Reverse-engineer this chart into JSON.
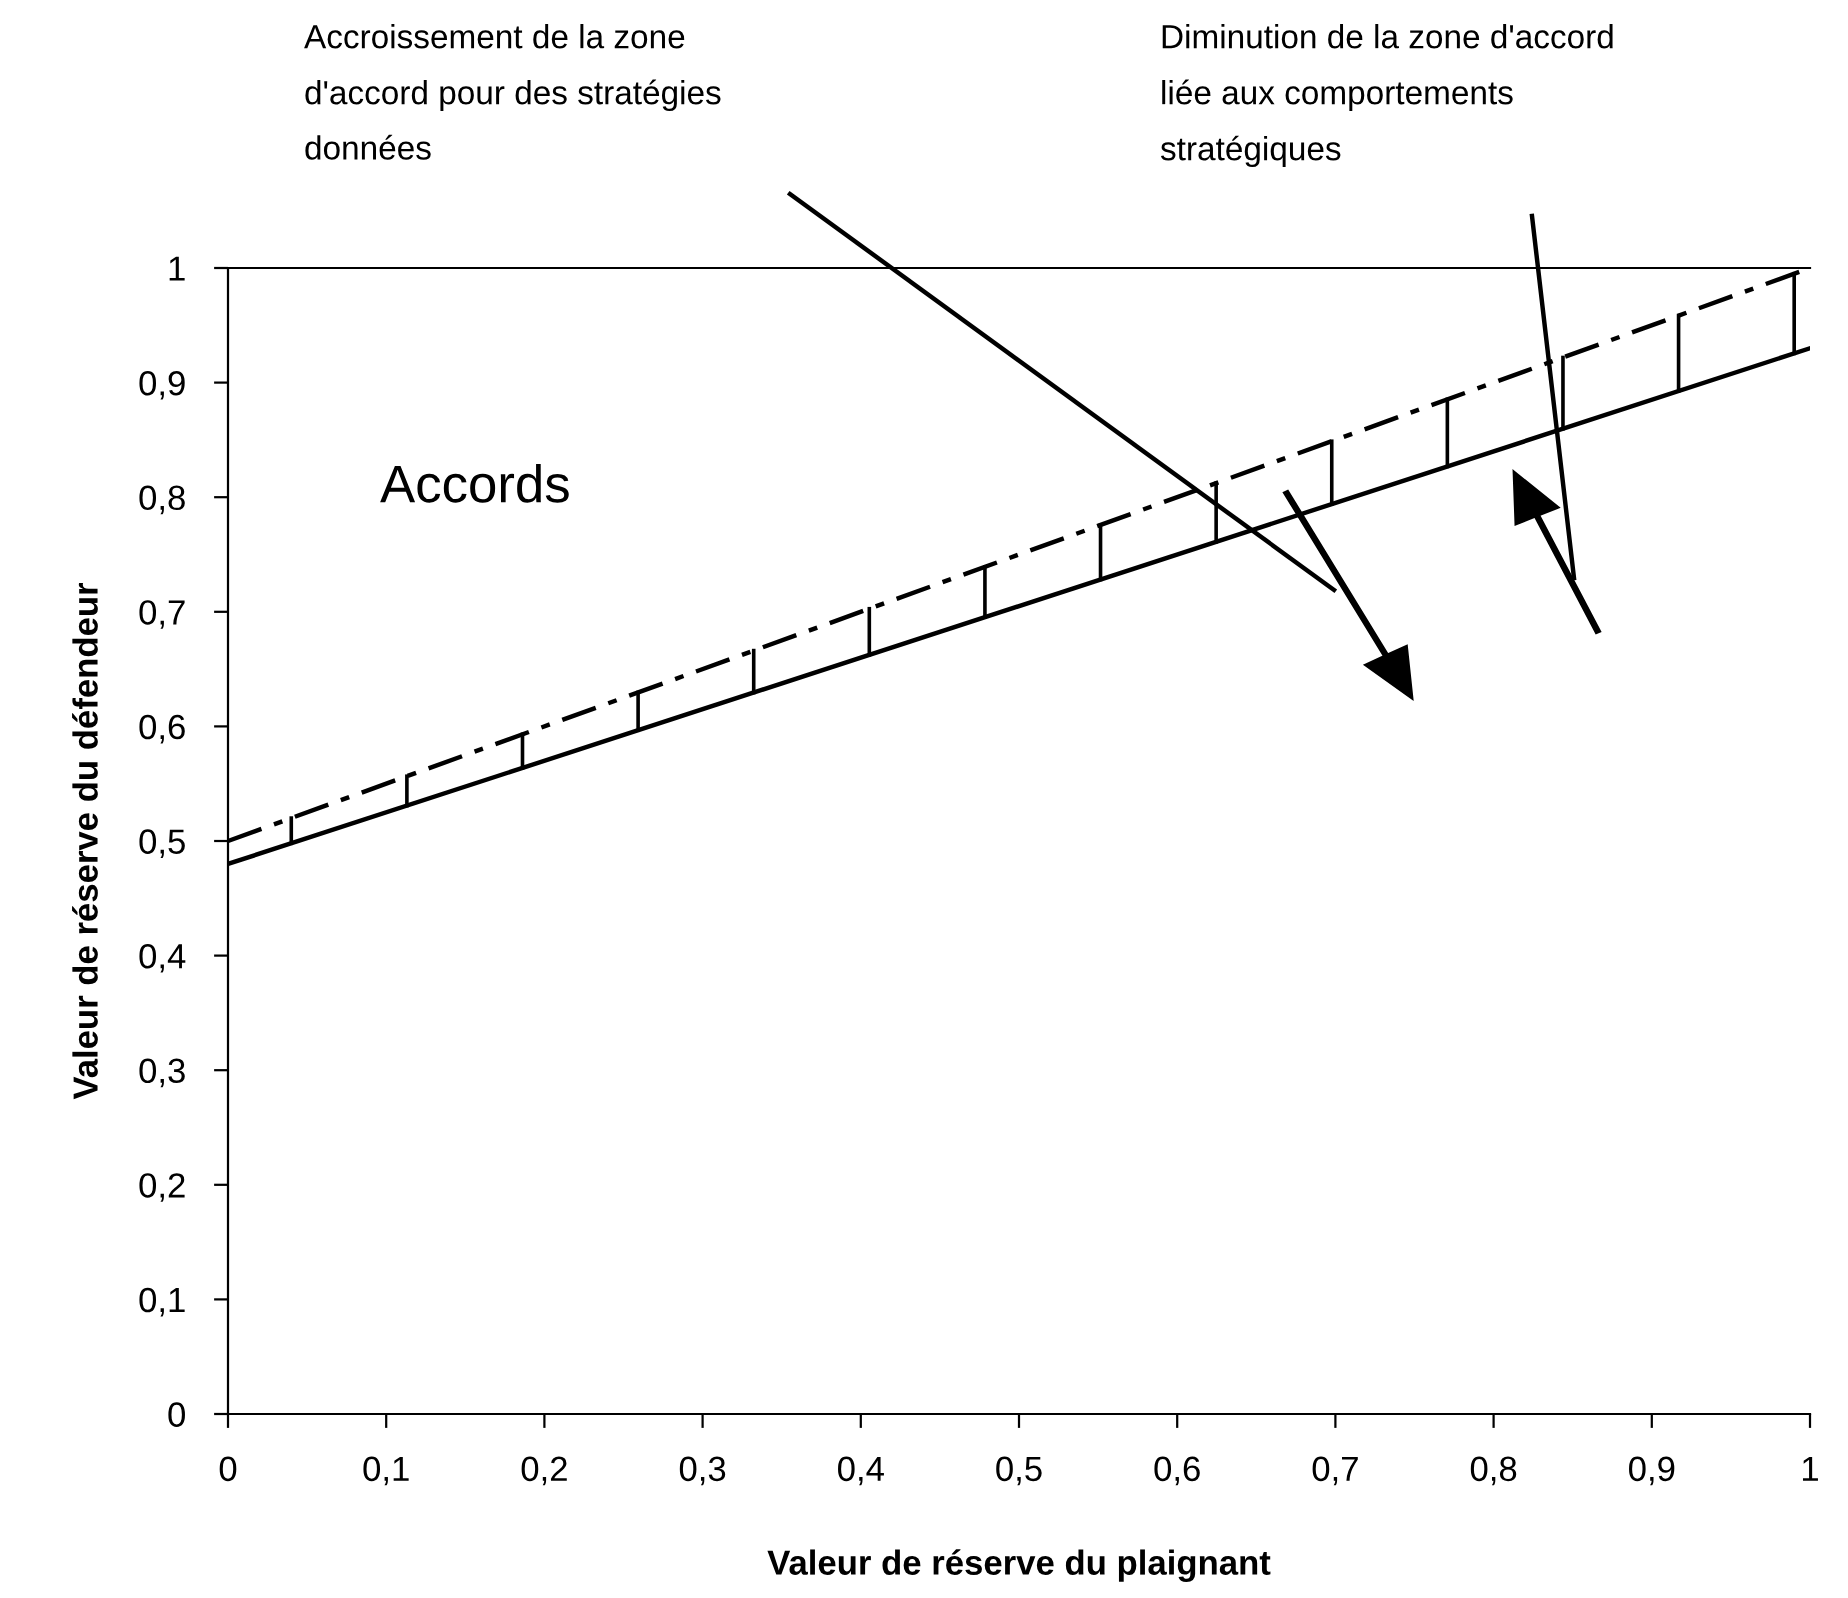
{
  "chart_data": {
    "type": "line",
    "xlabel": "Valeur de réserve du plaignant",
    "ylabel": "Valeur de réserve du défendeur",
    "x": [
      0,
      1
    ],
    "series": [
      {
        "color": "#000000",
        "values": [
          0.48,
          0.93
        ],
        "line_style": "solid"
      },
      {
        "color": "#000000",
        "values": [
          0.5,
          1.0
        ],
        "line_style": "dashdot"
      }
    ],
    "xlim": [
      0,
      1
    ],
    "ylim": [
      0,
      1
    ],
    "xticks": [
      0,
      {
        "value": 0.1,
        "label": "0,1"
      },
      {
        "value": 0.2,
        "label": "0,2"
      },
      {
        "value": 0.3,
        "label": "0,3"
      },
      {
        "value": 0.4,
        "label": "0,4"
      },
      {
        "value": 0.5,
        "label": "0,5"
      },
      {
        "value": 0.6,
        "label": "0,6"
      },
      {
        "value": 0.7,
        "label": "0,7"
      },
      {
        "value": 0.8,
        "label": "0,8"
      },
      {
        "value": 0.9,
        "label": "0,9"
      },
      1
    ],
    "yticks": [
      0,
      {
        "value": 0.1,
        "label": "0,1"
      },
      {
        "value": 0.2,
        "label": "0,2"
      },
      {
        "value": 0.3,
        "label": "0,3"
      },
      {
        "value": 0.4,
        "label": "0,4"
      },
      {
        "value": 0.5,
        "label": "0,5"
      },
      {
        "value": 0.6,
        "label": "0,6"
      },
      {
        "value": 0.7,
        "label": "0,7"
      },
      {
        "value": 0.8,
        "label": "0,8"
      },
      {
        "value": 0.9,
        "label": "0,9"
      },
      1
    ],
    "grid": false,
    "legend": false,
    "annotations": [
      "Accords",
      "Accroissement de la zone\nd'accord pour des stratégies\ndonnées",
      "Diminution de la zone d'accord\nliée aux comportements\nstratégiques"
    ]
  }
}
